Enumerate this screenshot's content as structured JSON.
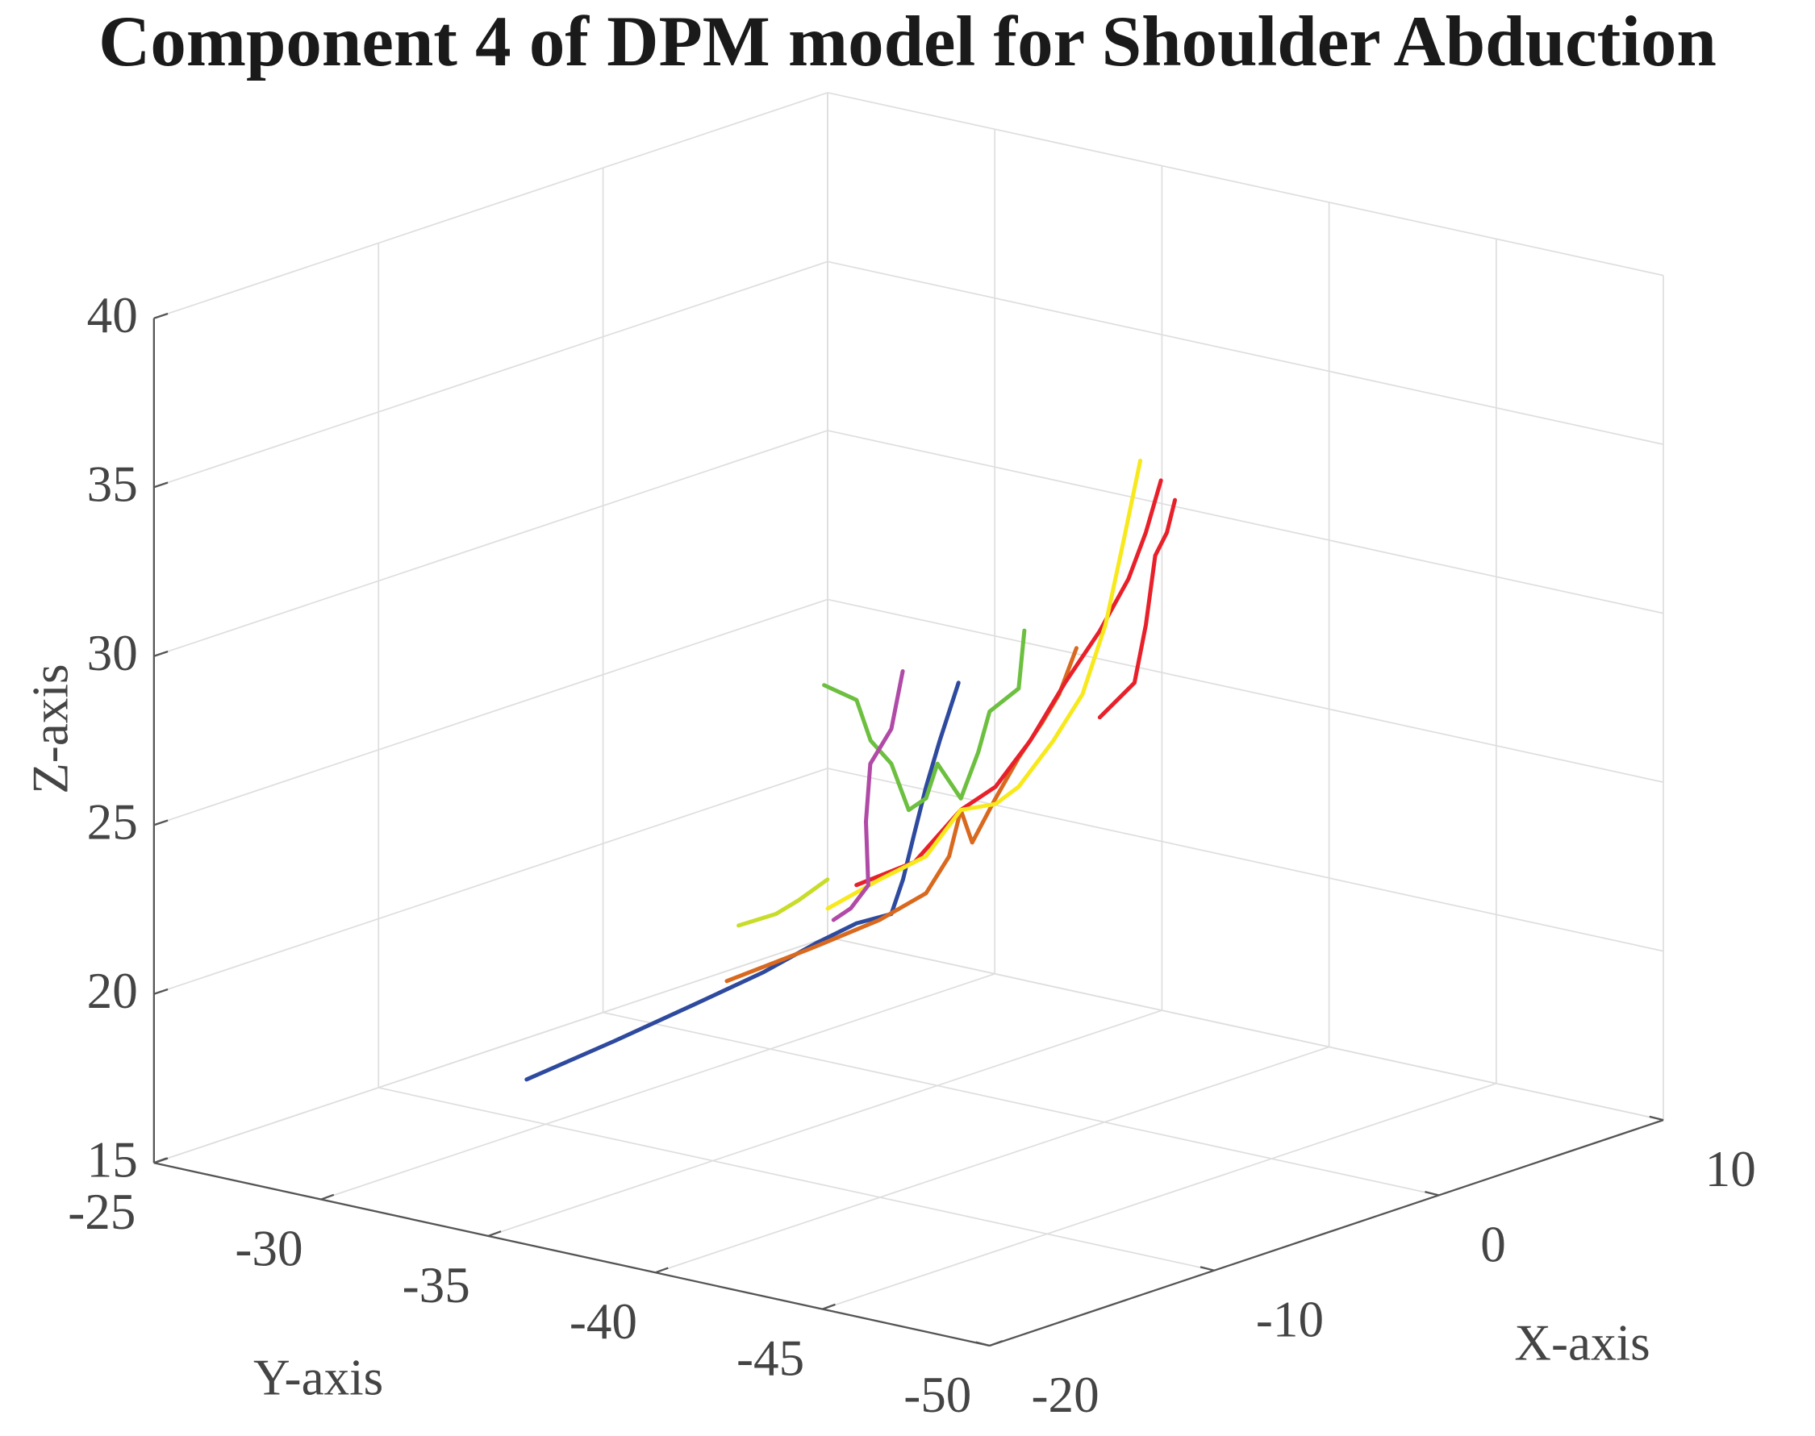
{
  "chart_data": {
    "type": "line3d",
    "title": "Component 4 of DPM model for Shoulder Abduction",
    "xlabel": "X-axis",
    "ylabel": "Y-axis",
    "zlabel": "Z-axis",
    "xlim": [
      -20,
      10
    ],
    "ylim": [
      -50,
      -25
    ],
    "zlim": [
      15,
      40
    ],
    "xticks": [
      -20,
      -10,
      0,
      10
    ],
    "yticks": [
      -50,
      -45,
      -40,
      -35,
      -30,
      -25
    ],
    "zticks": [
      15,
      20,
      25,
      30,
      35,
      40
    ],
    "grid": true,
    "series": [
      {
        "color": "#2e4a9e",
        "x": [
          -10,
          -10,
          -10,
          -10,
          -10,
          -10,
          -10,
          -10,
          -10,
          -10,
          -10,
          -10
        ],
        "y": [
          -29.43,
          -32.03,
          -34.45,
          -36.53,
          -38.09,
          -39.3,
          -40.34,
          -40.69,
          -41.03,
          -41.38,
          -41.79,
          -42.35
        ],
        "z": [
          16.2,
          17.89,
          19.51,
          20.92,
          22.11,
          22.96,
          23.46,
          24.56,
          26.0,
          27.45,
          28.91,
          30.74
        ]
      },
      {
        "color": "#d9691e",
        "x": [
          -5,
          -5,
          -5,
          -5,
          -5,
          -5,
          -5,
          -5,
          -5,
          -5,
          -5,
          -5
        ],
        "y": [
          -32.06,
          -34.56,
          -36.63,
          -38.02,
          -38.71,
          -39.06,
          -39.4,
          -40.1,
          -40.79,
          -41.48,
          -42.0,
          -42.52
        ],
        "z": [
          18.57,
          20.07,
          21.37,
          22.46,
          23.7,
          25.15,
          24.26,
          25.72,
          27.07,
          28.24,
          29.21,
          30.69
        ]
      },
      {
        "color": "#e8202a",
        "x": [
          5,
          5,
          5,
          5,
          5,
          5,
          5,
          5,
          5,
          5
        ],
        "y": [
          -29.22,
          -30.96,
          -32.34,
          -33.38,
          -34.42,
          -35.46,
          -36.5,
          -37.36,
          -37.88,
          -38.33
        ],
        "z": [
          18.57,
          19.63,
          21.47,
          22.38,
          23.97,
          25.91,
          27.67,
          29.4,
          30.89,
          32.52
        ]
      },
      {
        "color": "#e8202a",
        "x": [
          10,
          10,
          10,
          10,
          10,
          10
        ],
        "y": [
          -33.14,
          -34.18,
          -34.52,
          -34.8,
          -35.15,
          -35.39
        ],
        "z": [
          23.27,
          24.52,
          26.31,
          28.42,
          29.18,
          30.19
        ]
      },
      {
        "color": "#f7e91c",
        "x": [
          0,
          0,
          0,
          0,
          0,
          0,
          0,
          0,
          0,
          0,
          0
        ],
        "y": [
          -31.72,
          -33.28,
          -34.66,
          -35.7,
          -36.74,
          -37.43,
          -38.47,
          -39.34,
          -40.03,
          -40.55,
          -41.07
        ],
        "z": [
          19.53,
          20.73,
          21.71,
          23.31,
          23.71,
          24.37,
          25.96,
          27.52,
          29.73,
          32.23,
          34.81
        ]
      },
      {
        "color": "#6cbf3f",
        "x": [
          -10,
          -10,
          -10,
          -10,
          -10,
          -10,
          -10,
          -10,
          -10,
          -10,
          -10,
          -10
        ],
        "y": [
          -38.33,
          -39.3,
          -39.72,
          -40.34,
          -40.86,
          -41.38,
          -41.72,
          -42.42,
          -42.94,
          -43.28,
          -44.15,
          -44.32
        ],
        "z": [
          29.8,
          29.57,
          28.46,
          27.91,
          26.65,
          27.11,
          28.21,
          27.33,
          28.81,
          30.09,
          30.96,
          32.71
        ]
      },
      {
        "color": "#b04aa6",
        "x": [
          -15,
          -15,
          -15,
          -15,
          -15,
          -15,
          -15
        ],
        "y": [
          -41.97,
          -42.49,
          -43.01,
          -42.94,
          -43.07,
          -43.7,
          -44.04
        ],
        "z": [
          24.75,
          25.21,
          26.0,
          27.87,
          29.61,
          30.78,
          32.56
        ]
      },
      {
        "color": "#c8dc2a",
        "x": [
          -15,
          -15,
          -15,
          -15
        ],
        "y": [
          -39.13,
          -40.24,
          -40.93,
          -41.79
        ],
        "z": [
          23.97,
          24.55,
          25.11,
          25.91
        ]
      }
    ]
  }
}
